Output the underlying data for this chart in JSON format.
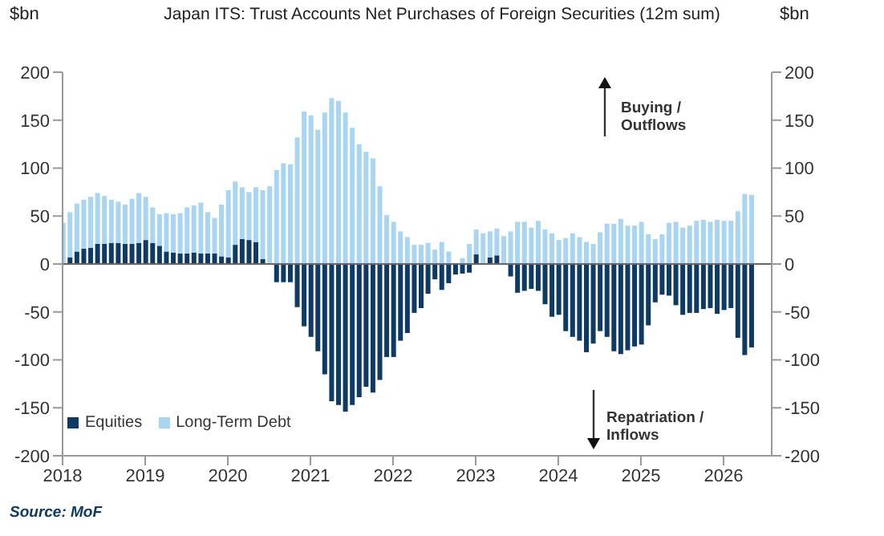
{
  "chart_data": {
    "type": "bar",
    "title": "Japan ITS: Trust Accounts Net Purchases of Foreign Securities (12m sum)",
    "ylabel": "$bn",
    "y2label": "$bn",
    "stacked": true,
    "legend": "bottom left",
    "annotations": [
      "Buying / Outflows",
      "Repatriation / Inflows",
      "Source: MoF"
    ],
    "x": [
      "2018-01",
      "2018-02",
      "2018-03",
      "2018-04",
      "2018-05",
      "2018-06",
      "2018-07",
      "2018-08",
      "2018-09",
      "2018-10",
      "2018-11",
      "2018-12",
      "2019-01",
      "2019-02",
      "2019-03",
      "2019-04",
      "2019-05",
      "2019-06",
      "2019-07",
      "2019-08",
      "2019-09",
      "2019-10",
      "2019-11",
      "2019-12",
      "2020-01",
      "2020-02",
      "2020-03",
      "2020-04",
      "2020-05",
      "2020-06",
      "2020-07",
      "2020-08",
      "2020-09",
      "2020-10",
      "2020-11",
      "2020-12",
      "2021-01",
      "2021-02",
      "2021-03",
      "2021-04",
      "2021-05",
      "2021-06",
      "2021-07",
      "2021-08",
      "2021-09",
      "2021-10",
      "2021-11",
      "2021-12",
      "2022-01",
      "2022-02",
      "2022-03",
      "2022-04",
      "2022-05",
      "2022-06",
      "2022-07",
      "2022-08",
      "2022-09",
      "2022-10",
      "2022-11",
      "2022-12",
      "2023-01",
      "2023-02",
      "2023-03",
      "2023-04",
      "2023-05",
      "2023-06",
      "2023-07",
      "2023-08",
      "2023-09",
      "2023-10",
      "2023-11",
      "2023-12",
      "2024-01",
      "2024-02",
      "2024-03",
      "2024-04",
      "2024-05",
      "2024-06",
      "2024-07",
      "2024-08",
      "2024-09",
      "2024-10",
      "2024-11",
      "2024-12",
      "2025-01",
      "2025-02",
      "2025-03",
      "2025-04",
      "2025-05",
      "2025-06",
      "2025-07",
      "2025-08",
      "2025-09",
      "2025-10",
      "2025-11",
      "2025-12",
      "2026-01",
      "2026-02",
      "2026-03",
      "2026-04",
      "2026-05"
    ],
    "series": [
      {
        "name": "Equities",
        "color": "#0d3b66",
        "values": [
          null,
          7,
          13,
          16,
          17,
          21,
          21,
          22,
          22,
          21,
          21,
          22,
          25,
          22,
          19,
          13,
          12,
          11,
          11,
          12,
          11,
          11,
          11,
          8,
          7,
          20,
          26,
          25,
          23,
          5,
          null,
          -19,
          -19,
          -19,
          -45,
          -65,
          -76,
          -91,
          -115,
          -143,
          -147,
          -154,
          -147,
          -139,
          -128,
          -134,
          -121,
          -97,
          -97,
          -80,
          -72,
          -51,
          -46,
          -31,
          -16,
          -27,
          -20,
          -11,
          -10,
          -9,
          10,
          0,
          7,
          9,
          0,
          -13,
          -30,
          -28,
          -26,
          -28,
          -42,
          -55,
          -53,
          -70,
          -76,
          -80,
          -92,
          -83,
          -70,
          -76,
          -91,
          -94,
          -90,
          -86,
          -84,
          -64,
          -40,
          -32,
          -33,
          -43,
          -53,
          -51,
          -51,
          -47,
          -46,
          -52,
          -48,
          -46,
          -77,
          -95,
          -87
        ]
      },
      {
        "name": "Long-Term Debt",
        "color": "#a8d5f2",
        "values": [
          43,
          47,
          50,
          51,
          53,
          53,
          50,
          45,
          43,
          41,
          47,
          52,
          45,
          37,
          33,
          40,
          40,
          42,
          48,
          49,
          53,
          43,
          37,
          54,
          70,
          66,
          54,
          50,
          57,
          72,
          81,
          98,
          105,
          104,
          132,
          159,
          155,
          140,
          158,
          173,
          170,
          158,
          142,
          125,
          117,
          110,
          81,
          51,
          44,
          34,
          28,
          20,
          20,
          22,
          15,
          23,
          13,
          0,
          6,
          21,
          26,
          32,
          27,
          28,
          29,
          34,
          44,
          44,
          38,
          45,
          36,
          32,
          25,
          27,
          32,
          28,
          23,
          21,
          33,
          42,
          42,
          47,
          40,
          40,
          44,
          31,
          26,
          31,
          43,
          44,
          38,
          40,
          45,
          46,
          44,
          46,
          45,
          45,
          55,
          73,
          72
        ]
      }
    ],
    "xlim": [
      "2018-01",
      "2026-08"
    ],
    "xticks": [
      "2018",
      "2019",
      "2020",
      "2021",
      "2022",
      "2023",
      "2024",
      "2025",
      "2026"
    ],
    "ylim": [
      -200,
      200
    ],
    "yticks": [
      -200,
      -150,
      -100,
      -50,
      0,
      50,
      100,
      150,
      200
    ],
    "y2lim": [
      -200,
      200
    ],
    "y2ticks": [
      -200,
      -150,
      -100,
      -50,
      0,
      50,
      100,
      150,
      200
    ]
  }
}
